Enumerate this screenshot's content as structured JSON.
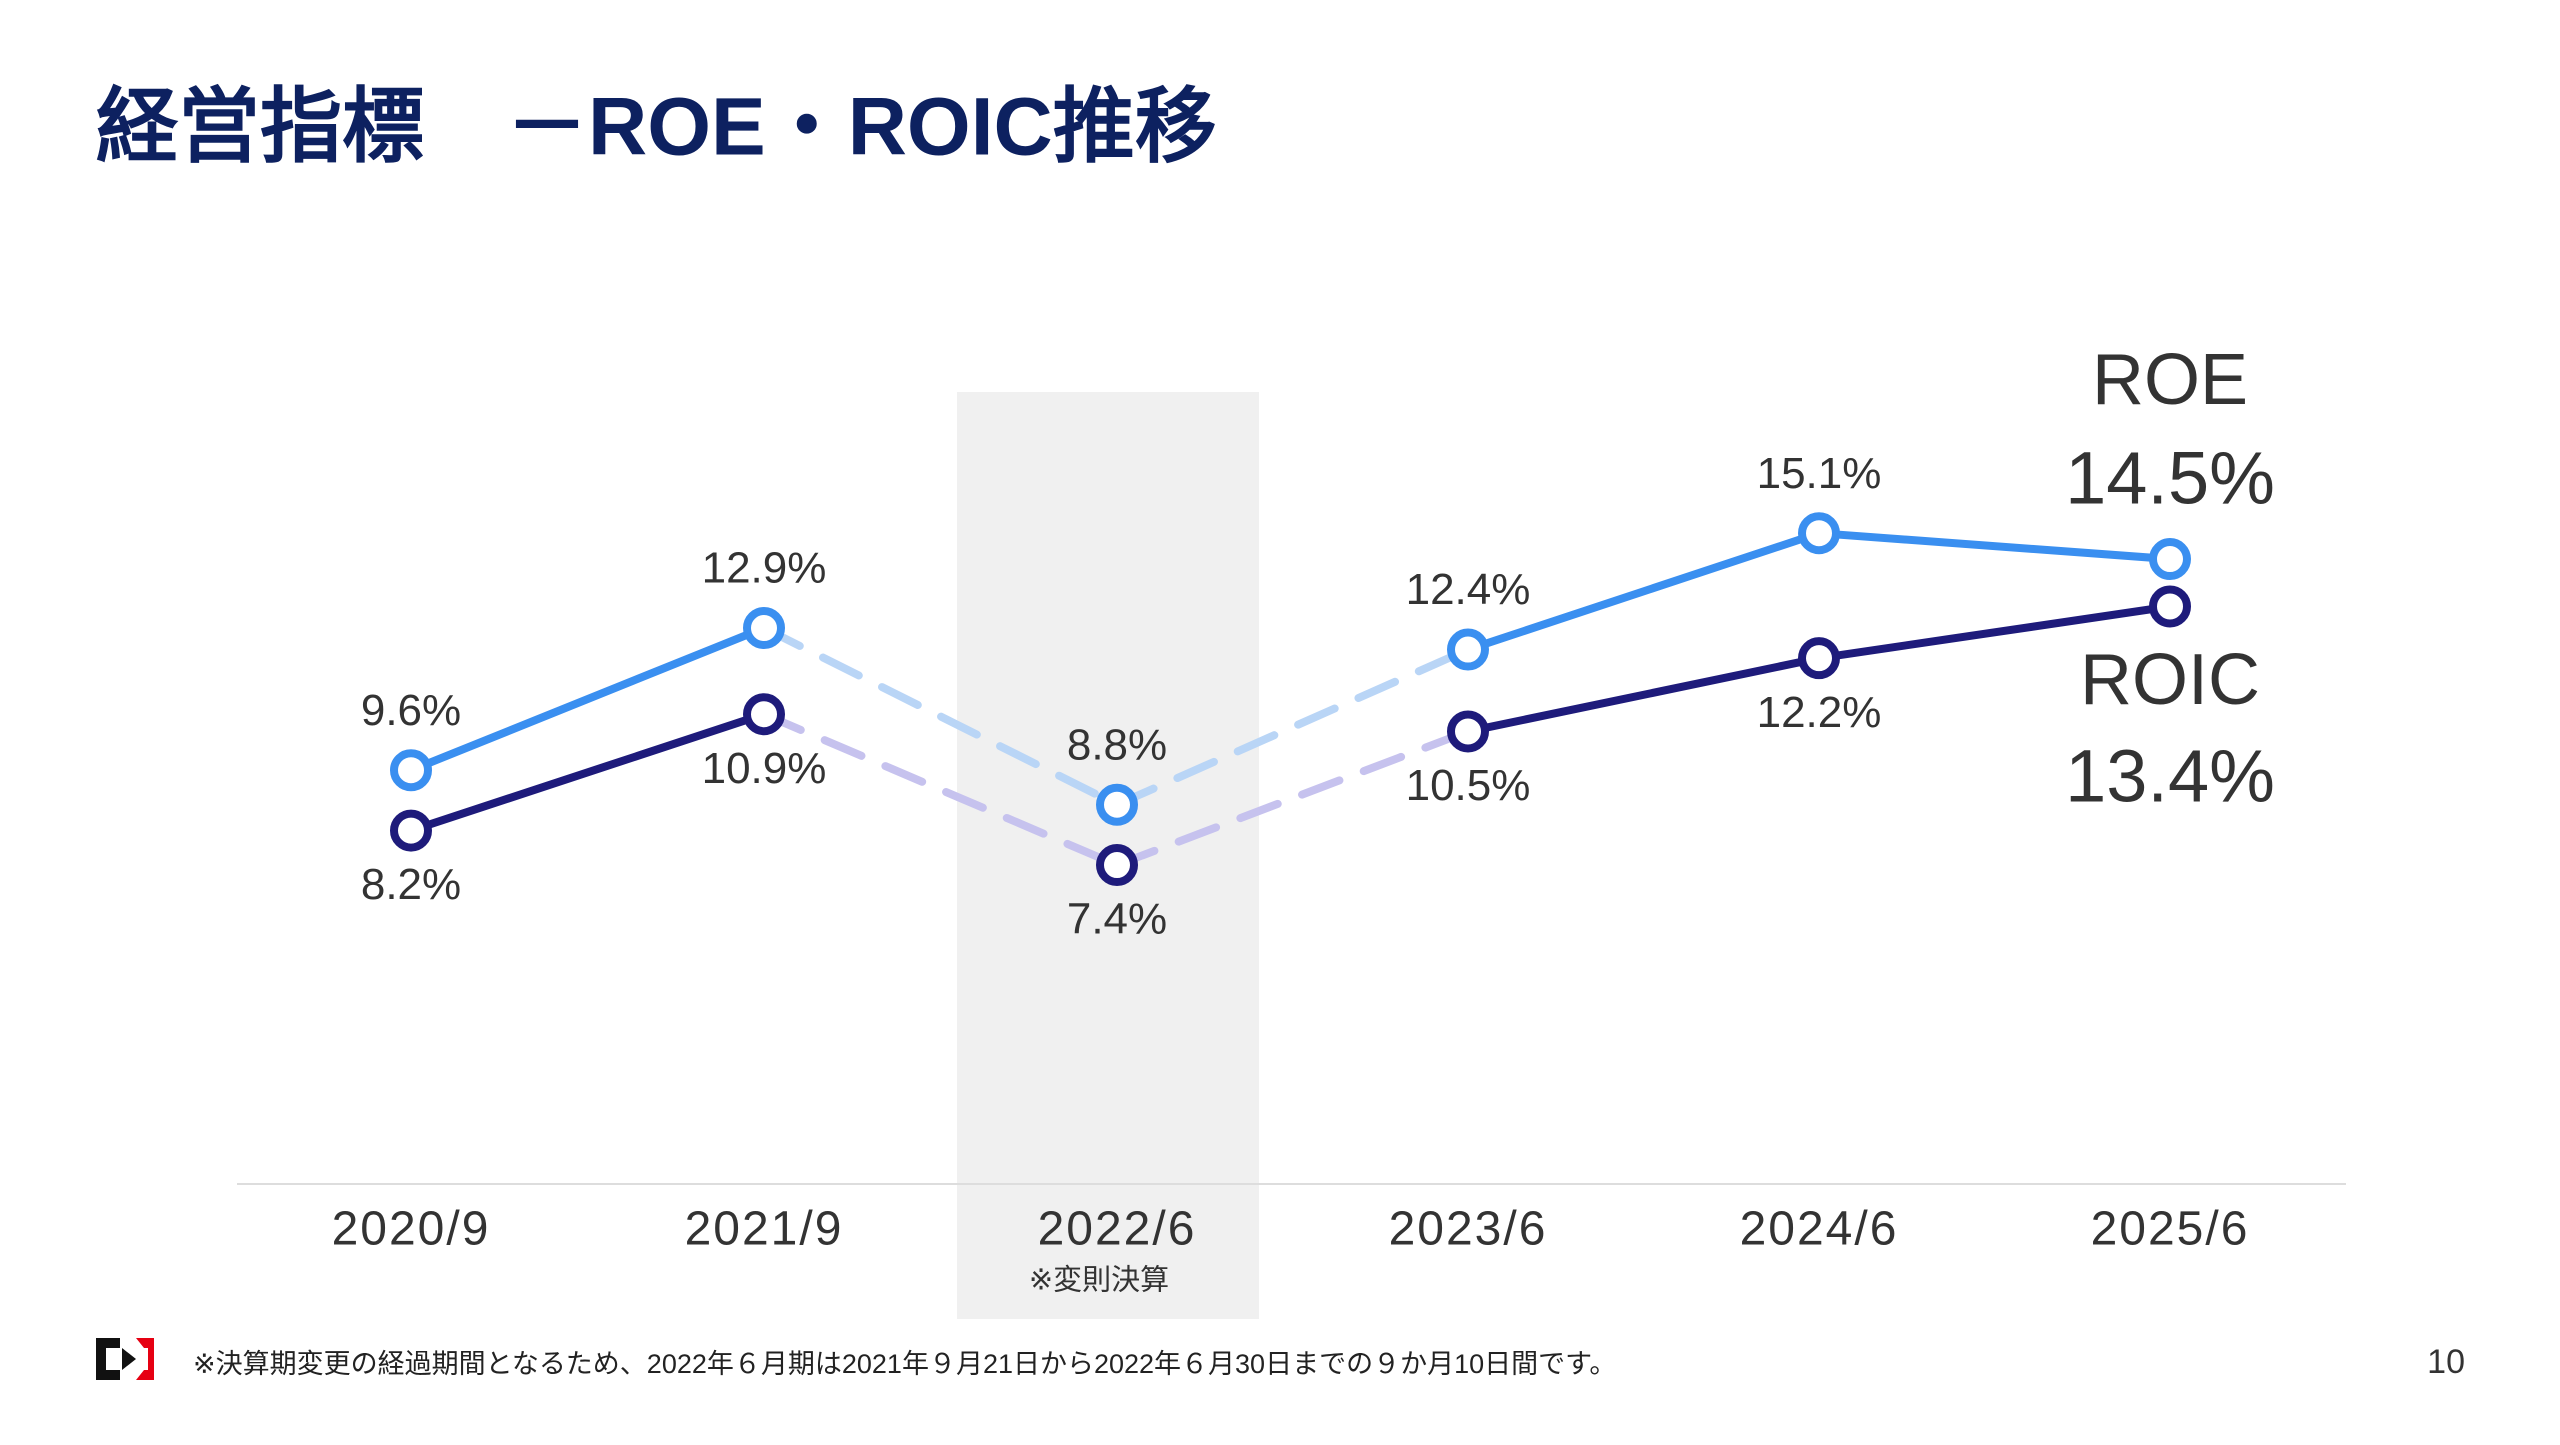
{
  "header": {
    "title": "経営指標　－ROE・ROIC推移"
  },
  "chart_data": {
    "type": "line",
    "categories": [
      "2020/9",
      "2021/9",
      "2022/6",
      "2023/6",
      "2024/6",
      "2025/6"
    ],
    "category_note": "※変則決算",
    "highlight_category": 2,
    "ylim": [
      0,
      20
    ],
    "series": [
      {
        "name": "ROE",
        "color": "#3a8ff0",
        "dashed_color": "#b9d5f6",
        "values": [
          9.6,
          12.9,
          8.8,
          12.4,
          15.1,
          14.5
        ],
        "value_labels": [
          "9.6%",
          "12.9%",
          "8.8%",
          "12.4%",
          "15.1%",
          "14.5%"
        ]
      },
      {
        "name": "ROIC",
        "color": "#1e1b7b",
        "dashed_color": "#c6c2ee",
        "values": [
          8.2,
          10.9,
          7.4,
          10.5,
          12.2,
          13.4
        ],
        "value_labels": [
          "8.2%",
          "10.9%",
          "7.4%",
          "10.5%",
          "12.2%",
          "13.4%"
        ]
      }
    ]
  },
  "footer": {
    "note": "※決算期変更の経過期間となるため、2022年６月期は2021年９月21日から2022年６月30日までの９か月10日間です。",
    "page": "10"
  }
}
